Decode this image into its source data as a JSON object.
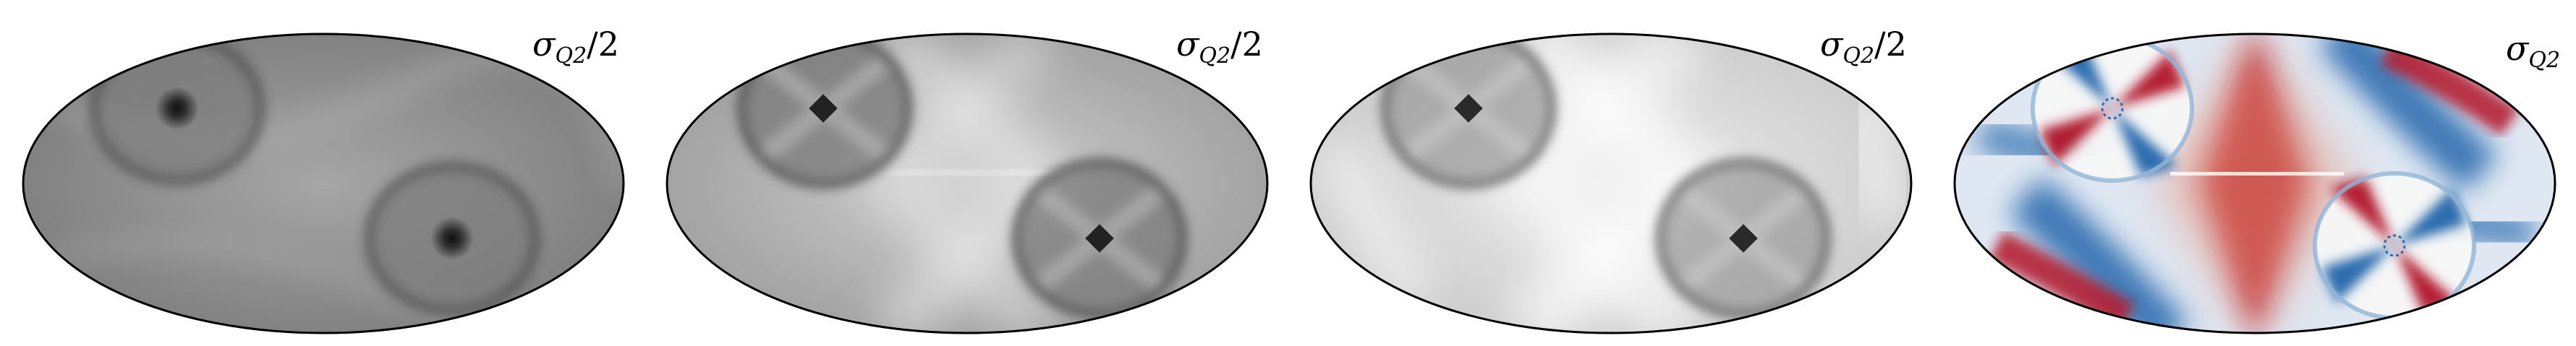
{
  "panels": [
    {
      "id": "map-1",
      "label_symbol": "σ",
      "label_sub": "Q2",
      "label_suffix": "/2",
      "colormap": "grayscale",
      "colors": {
        "bg": "#8f8f8f",
        "light": "#b4b4b4",
        "dark": "#2a2a2a",
        "ring": "#4a4a4a"
      }
    },
    {
      "id": "map-2",
      "label_symbol": "σ",
      "label_sub": "Q2",
      "label_suffix": "/2",
      "colormap": "grayscale",
      "colors": {
        "bg": "#b8b8b8",
        "light": "#e6e6e6",
        "dark": "#3a3a3a",
        "ring": "#555555"
      }
    },
    {
      "id": "map-3",
      "label_symbol": "σ",
      "label_sub": "Q2",
      "label_suffix": "/2",
      "colormap": "grayscale",
      "colors": {
        "bg": "#dcdcdc",
        "light": "#f8f8f8",
        "dark": "#4a4a4a",
        "ring": "#5e5e5e"
      }
    },
    {
      "id": "map-4",
      "label_symbol": "σ",
      "label_sub": "Q2",
      "label_suffix": "",
      "colormap": "diverging-red-blue",
      "colors": {
        "bg": "#e9eef6",
        "red": "#b2182b",
        "lightred": "#ef8a62",
        "blue": "#2166ac",
        "lightblue": "#67a9cf"
      }
    }
  ]
}
